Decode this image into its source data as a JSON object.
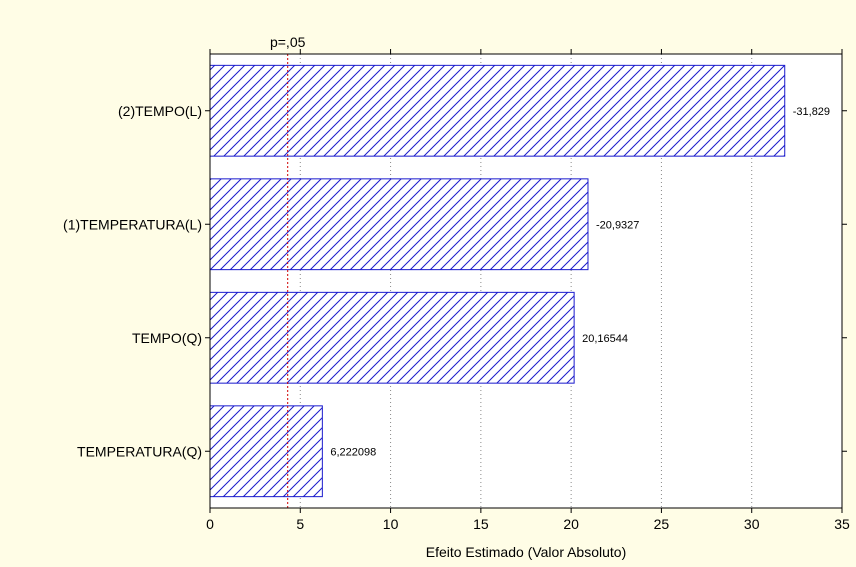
{
  "chart_data": {
    "type": "bar",
    "orientation": "horizontal",
    "categories": [
      "(2)TEMPO(L)",
      "(1)TEMPERATURA(L)",
      "TEMPO(Q)",
      "TEMPERATURA(Q)"
    ],
    "values": [
      31.829,
      20.9327,
      20.16544,
      6.222098
    ],
    "value_labels": [
      "-31,829",
      "-20,9327",
      "20,16544",
      "6,222098"
    ],
    "xlabel": "Efeito Estimado (Valor Absoluto)",
    "xlim": [
      0,
      35
    ],
    "xticks": [
      0,
      5,
      10,
      15,
      20,
      25,
      30,
      35
    ],
    "grid": "vertical dotted",
    "reference_line": {
      "label": "p=,05",
      "value": 4.303,
      "color": "#d00000"
    },
    "colors": {
      "bar_stroke": "#1a1acc",
      "bar_hatch": "#1a1acc",
      "bar_fill": "#ffffff",
      "background": "#fffde6",
      "plot_area": "#ffffff"
    }
  }
}
